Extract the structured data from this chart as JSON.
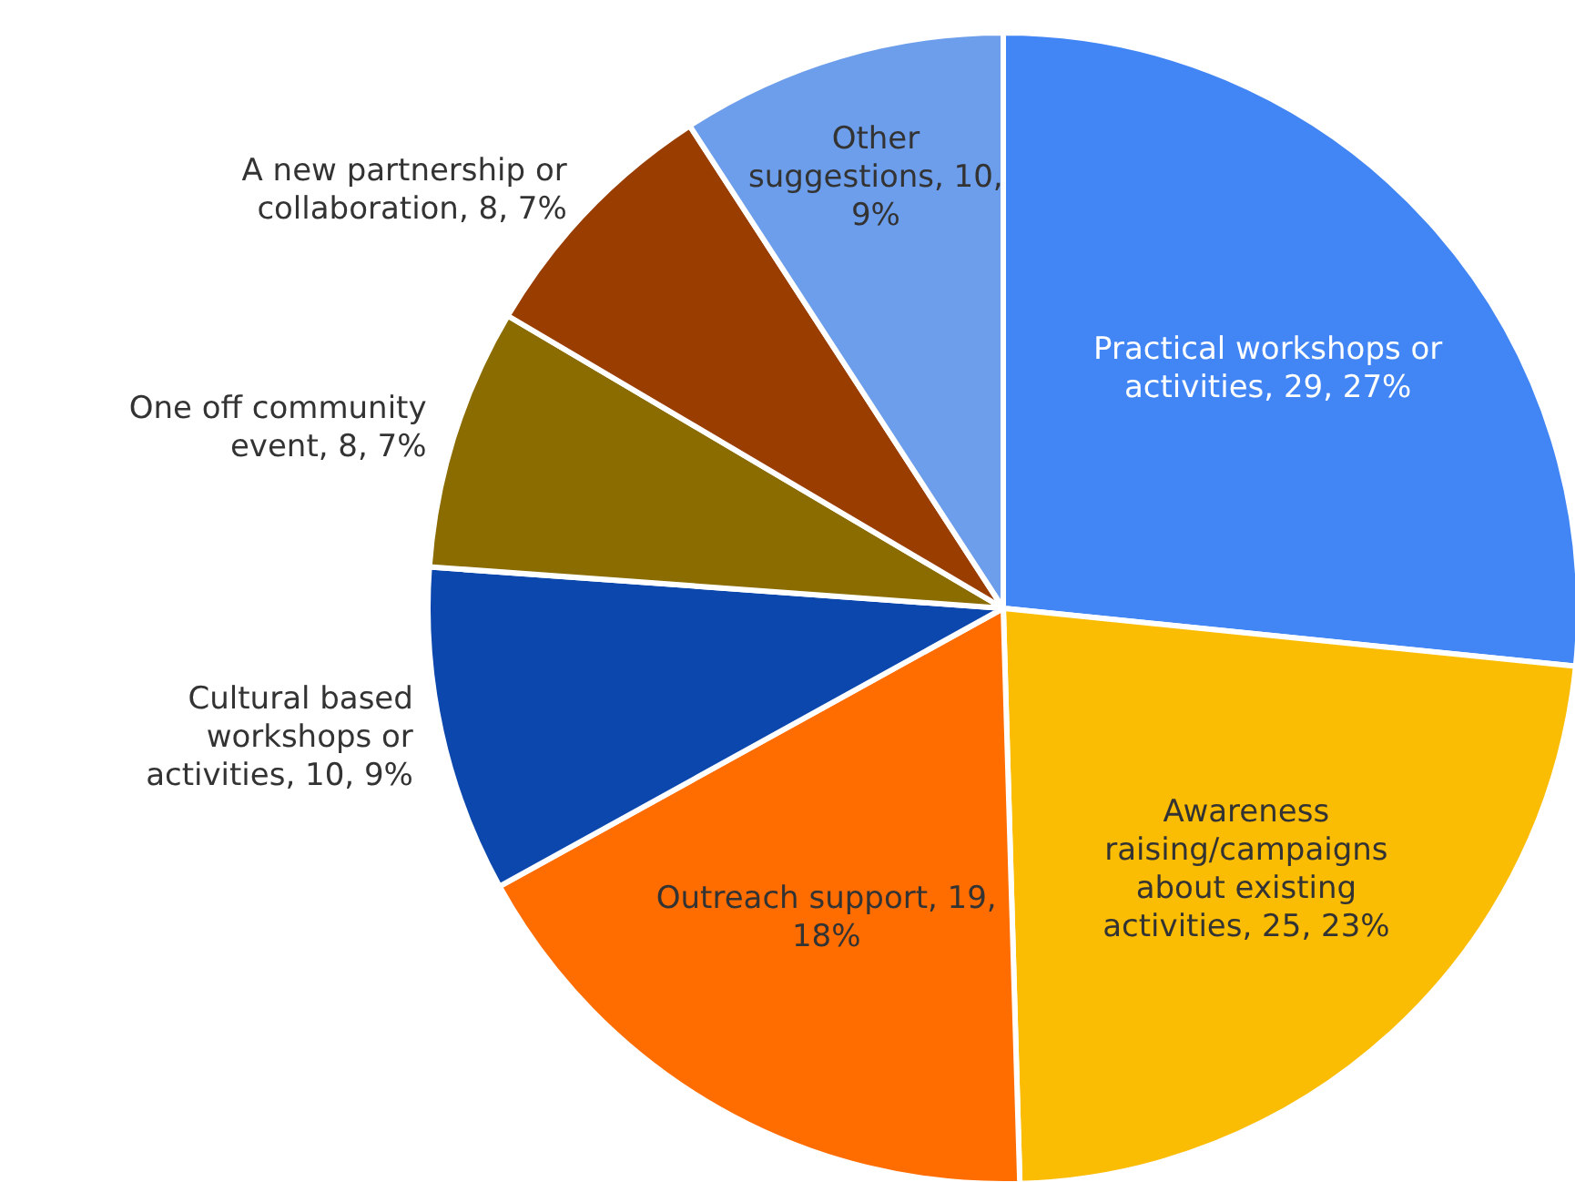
{
  "chart_data": {
    "type": "pie",
    "categories": [
      "Practical workshops or activities",
      "Awareness raising/campaigns about existing activities",
      "Outreach support",
      "Cultural based workshops or activities",
      "One off community event",
      "A new partnership or collaboration",
      "Other suggestions"
    ],
    "values": [
      29,
      25,
      19,
      10,
      8,
      8,
      10
    ],
    "colors": [
      "#4285f4",
      "#fbbc04",
      "#ff6d01",
      "#0b47ad",
      "#8b6c00",
      "#9a3d00",
      "#6d9eeb"
    ],
    "value_labels": [
      "29, 27%",
      "25, 23%",
      "19, 18%",
      "10, 9%",
      "8, 7%",
      "8, 7%",
      "10, 9%"
    ]
  }
}
